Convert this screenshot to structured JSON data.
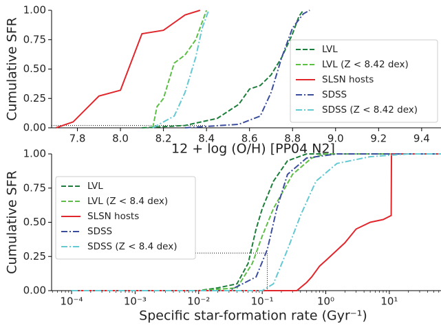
{
  "chart_data": [
    {
      "type": "line",
      "ylabel": "Cumulative SFR",
      "xlabel": "12 + log (O/H) [PP04 N2]",
      "xlim": [
        7.68,
        9.49
      ],
      "ylim": [
        0,
        1
      ],
      "xticks": [
        7.8,
        {
          "value": 8,
          "label": "8.0"
        },
        8.2,
        8.4,
        8.6,
        8.8,
        {
          "value": 9,
          "label": "9.0"
        },
        9.2,
        9.4
      ],
      "yticks": [
        {
          "value": 0,
          "label": "0.00"
        },
        {
          "value": 0.25,
          "label": "0.25"
        },
        {
          "value": 0.5,
          "label": "0.50"
        },
        {
          "value": 0.75,
          "label": "0.75"
        },
        {
          "value": 1,
          "label": "1.00"
        }
      ],
      "log_x": false,
      "legend": "lower right",
      "guide": {
        "x": [
          7.68,
          8.4
        ],
        "values": [
          0.02,
          0.02
        ]
      },
      "series": [
        {
          "name": "LVL",
          "color": "#1b7d3a",
          "linestyle": "dashed",
          "x": [
            8.1,
            8.3,
            8.45,
            8.55,
            8.6,
            8.65,
            8.7,
            8.75,
            8.8,
            8.83,
            8.85
          ],
          "values": [
            0,
            0.02,
            0.08,
            0.2,
            0.33,
            0.36,
            0.45,
            0.6,
            0.8,
            0.95,
            1
          ]
        },
        {
          "name": "LVL (Z < 8.42 dex)",
          "color": "#5cbf45",
          "linestyle": "dashed",
          "x": [
            8.15,
            8.17,
            8.2,
            8.25,
            8.3,
            8.35,
            8.38,
            8.4
          ],
          "values": [
            0,
            0.18,
            0.25,
            0.55,
            0.62,
            0.75,
            0.9,
            1
          ]
        },
        {
          "name": "SLSN hosts",
          "color": "#e0262b",
          "linestyle": "solid",
          "x": [
            7.7,
            7.78,
            7.9,
            8.0,
            8.1,
            8.2,
            8.3,
            8.37
          ],
          "values": [
            0,
            0.05,
            0.27,
            0.32,
            0.8,
            0.83,
            0.96,
            1
          ]
        },
        {
          "name": "SDSS",
          "color": "#3a4c9c",
          "linestyle": "dashdot",
          "x": [
            8.3,
            8.55,
            8.65,
            8.7,
            8.75,
            8.8,
            8.85,
            8.88
          ],
          "values": [
            0,
            0.03,
            0.1,
            0.3,
            0.6,
            0.85,
            0.97,
            1
          ]
        },
        {
          "name": "SDSS (Z < 8.42 dex)",
          "color": "#62c9d2",
          "linestyle": "dashdot",
          "x": [
            8.15,
            8.25,
            8.3,
            8.35,
            8.38,
            8.41
          ],
          "values": [
            0,
            0.1,
            0.3,
            0.6,
            0.85,
            1
          ]
        }
      ]
    },
    {
      "type": "line",
      "ylabel": "Cumulative SFR",
      "xlabel": "Specific star-formation rate (Gyr⁻¹)",
      "xlim": [
        4.85e-05,
        65
      ],
      "ylim": [
        0,
        1
      ],
      "xticks": [
        {
          "value": 0.0001,
          "label": "10⁻⁴"
        },
        {
          "value": 0.001,
          "label": "10⁻³"
        },
        {
          "value": 0.01,
          "label": "10⁻²"
        },
        {
          "value": 0.1,
          "label": "10⁻¹"
        },
        {
          "value": 1,
          "label": "10⁰"
        },
        {
          "value": 10,
          "label": "10¹"
        }
      ],
      "yticks": [
        {
          "value": 0,
          "label": "0.00"
        },
        {
          "value": 0.25,
          "label": "0.25"
        },
        {
          "value": 0.5,
          "label": "0.50"
        },
        {
          "value": 0.75,
          "label": "0.75"
        },
        {
          "value": 1,
          "label": "1.00"
        }
      ],
      "log_x": true,
      "legend": "upper left",
      "guide": {
        "x": [
          0.0001,
          0.12,
          0.12
        ],
        "values": [
          0.275,
          0.275,
          0
        ]
      },
      "series": [
        {
          "name": "LVL",
          "color": "#1b7d3a",
          "linestyle": "dashed",
          "x": [
            0.0001,
            0.01,
            0.02,
            0.04,
            0.06,
            0.08,
            0.1,
            0.15,
            0.25,
            0.5,
            65
          ],
          "values": [
            0,
            0,
            0.02,
            0.05,
            0.2,
            0.45,
            0.6,
            0.8,
            0.95,
            1,
            1
          ]
        },
        {
          "name": "LVL (Z < 8.4 dex)",
          "color": "#5cbf45",
          "linestyle": "dashed",
          "x": [
            0.0001,
            0.01,
            0.04,
            0.07,
            0.1,
            0.15,
            0.3,
            0.6,
            1,
            65
          ],
          "values": [
            0,
            0,
            0.02,
            0.2,
            0.4,
            0.6,
            0.85,
            0.97,
            1,
            1
          ]
        },
        {
          "name": "SLSN hosts",
          "color": "#e0262b",
          "linestyle": "solid",
          "x": [
            0.0001,
            0.35,
            0.5,
            0.6,
            0.8,
            1,
            2,
            3,
            5,
            8,
            10.7,
            10.8,
            65
          ],
          "values": [
            0,
            0,
            0.06,
            0.1,
            0.18,
            0.22,
            0.35,
            0.45,
            0.5,
            0.52,
            0.55,
            1,
            1
          ]
        },
        {
          "name": "SDSS",
          "color": "#3a4c9c",
          "linestyle": "dashdot",
          "x": [
            0.0001,
            0.03,
            0.08,
            0.12,
            0.17,
            0.25,
            0.5,
            1.5,
            65
          ],
          "values": [
            0,
            0,
            0.1,
            0.3,
            0.6,
            0.85,
            0.97,
            1,
            1
          ]
        },
        {
          "name": "SDSS (Z < 8.4 dex)",
          "color": "#62c9d2",
          "linestyle": "dashdot",
          "x": [
            0.0001,
            0.1,
            0.15,
            0.25,
            0.4,
            0.7,
            1.5,
            5,
            20,
            65
          ],
          "values": [
            0,
            0,
            0.05,
            0.3,
            0.55,
            0.8,
            0.93,
            0.98,
            1,
            1
          ]
        }
      ]
    }
  ]
}
